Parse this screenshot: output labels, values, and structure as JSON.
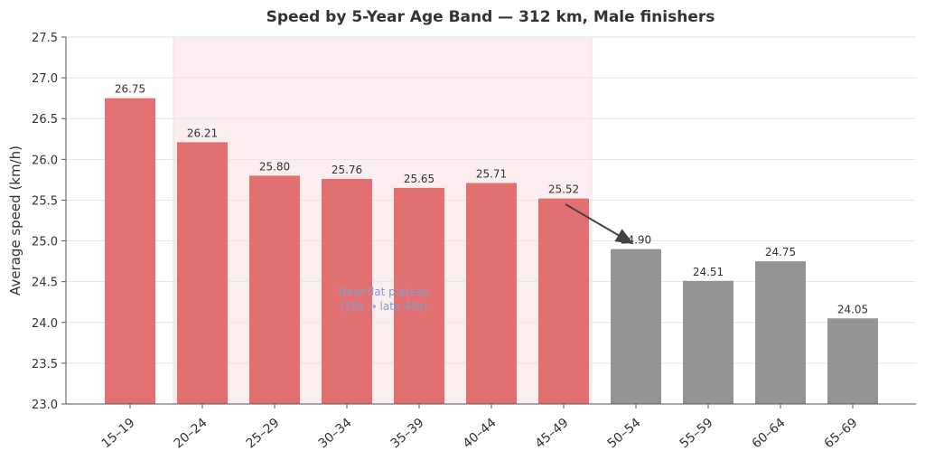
{
  "chart_data": {
    "type": "bar",
    "title": "Speed by 5-Year Age Band — 312 km, Male finishers",
    "xlabel": "",
    "ylabel": "Average speed (km/h)",
    "ylim": [
      23.0,
      27.5
    ],
    "yticks": [
      "23.0",
      "23.5",
      "24.0",
      "24.5",
      "25.0",
      "25.5",
      "26.0",
      "26.5",
      "27.0",
      "27.5"
    ],
    "grid": "horizontal",
    "categories": [
      "15–19",
      "20–24",
      "25–29",
      "30–34",
      "35–39",
      "40–44",
      "45–49",
      "50–54",
      "55–59",
      "60–64",
      "65–69"
    ],
    "values": [
      26.75,
      26.21,
      25.8,
      25.76,
      25.65,
      25.71,
      25.52,
      24.9,
      24.51,
      24.75,
      24.05
    ],
    "data_labels": [
      "26.75",
      "26.21",
      "25.80",
      "25.76",
      "25.65",
      "25.71",
      "25.52",
      "24.90",
      "24.51",
      "24.75",
      "24.05"
    ],
    "colors": {
      "highlight": "#e06666",
      "other": "#8c8c8c",
      "shade": "#fbeeee",
      "annotation": "#7f9fcf",
      "arrow": "#444444"
    },
    "bar_groups": [
      "highlight",
      "highlight",
      "highlight",
      "highlight",
      "highlight",
      "highlight",
      "highlight",
      "other",
      "other",
      "other",
      "other"
    ],
    "shaded_span": {
      "from_category": "20–24",
      "to_category": "45–49"
    },
    "annotation": {
      "line1": "Near-flat plateau",
      "line2": "(20s → late 40s)",
      "arrow_from": {
        "category": "45–49",
        "value": 25.45
      },
      "arrow_to": {
        "category": "50–54",
        "value": 24.97
      }
    }
  }
}
